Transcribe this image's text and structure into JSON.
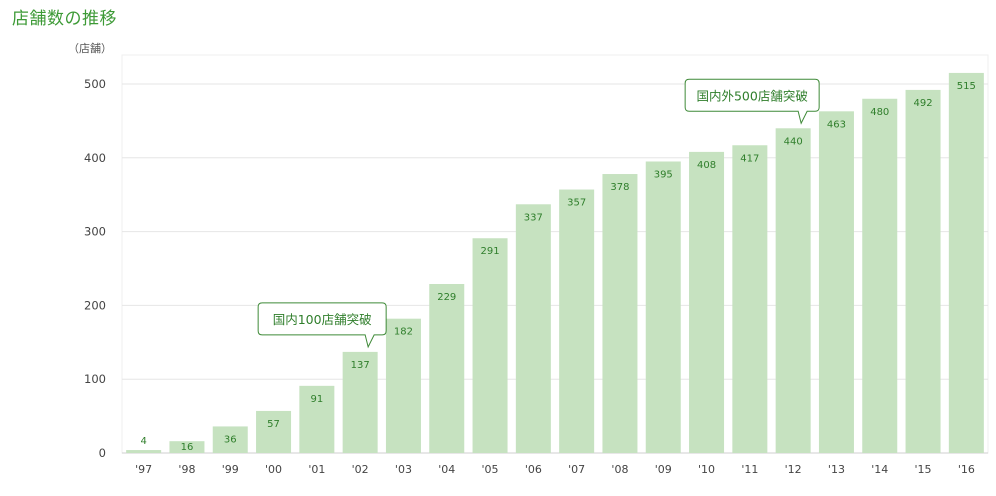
{
  "title": "店舗数の推移",
  "chart_data": {
    "type": "bar",
    "title": "店舗数の推移",
    "ylabel": "（店舗）",
    "xlabel": "",
    "ylim": [
      0,
      530
    ],
    "yticks": [
      0,
      100,
      200,
      300,
      400,
      500
    ],
    "grid": true,
    "categories": [
      "'97",
      "'98",
      "'99",
      "'00",
      "'01",
      "'02",
      "'03",
      "'04",
      "'05",
      "'06",
      "'07",
      "'08",
      "'09",
      "'10",
      "'11",
      "'12",
      "'13",
      "'14",
      "'15",
      "'16"
    ],
    "values": [
      4,
      16,
      36,
      57,
      91,
      137,
      182,
      229,
      291,
      337,
      357,
      378,
      395,
      408,
      417,
      440,
      463,
      480,
      492,
      515
    ],
    "annotations": [
      {
        "text": "国内100店舗突破",
        "category": "'02"
      },
      {
        "text": "国内外500店舗突破",
        "category": "'12"
      }
    ],
    "colors": {
      "bar": "#c6e2c0",
      "label": "#2f7e2b",
      "title": "#3d9a36",
      "grid": "#e6e6e6",
      "callout_border": "#3f8a38"
    }
  }
}
